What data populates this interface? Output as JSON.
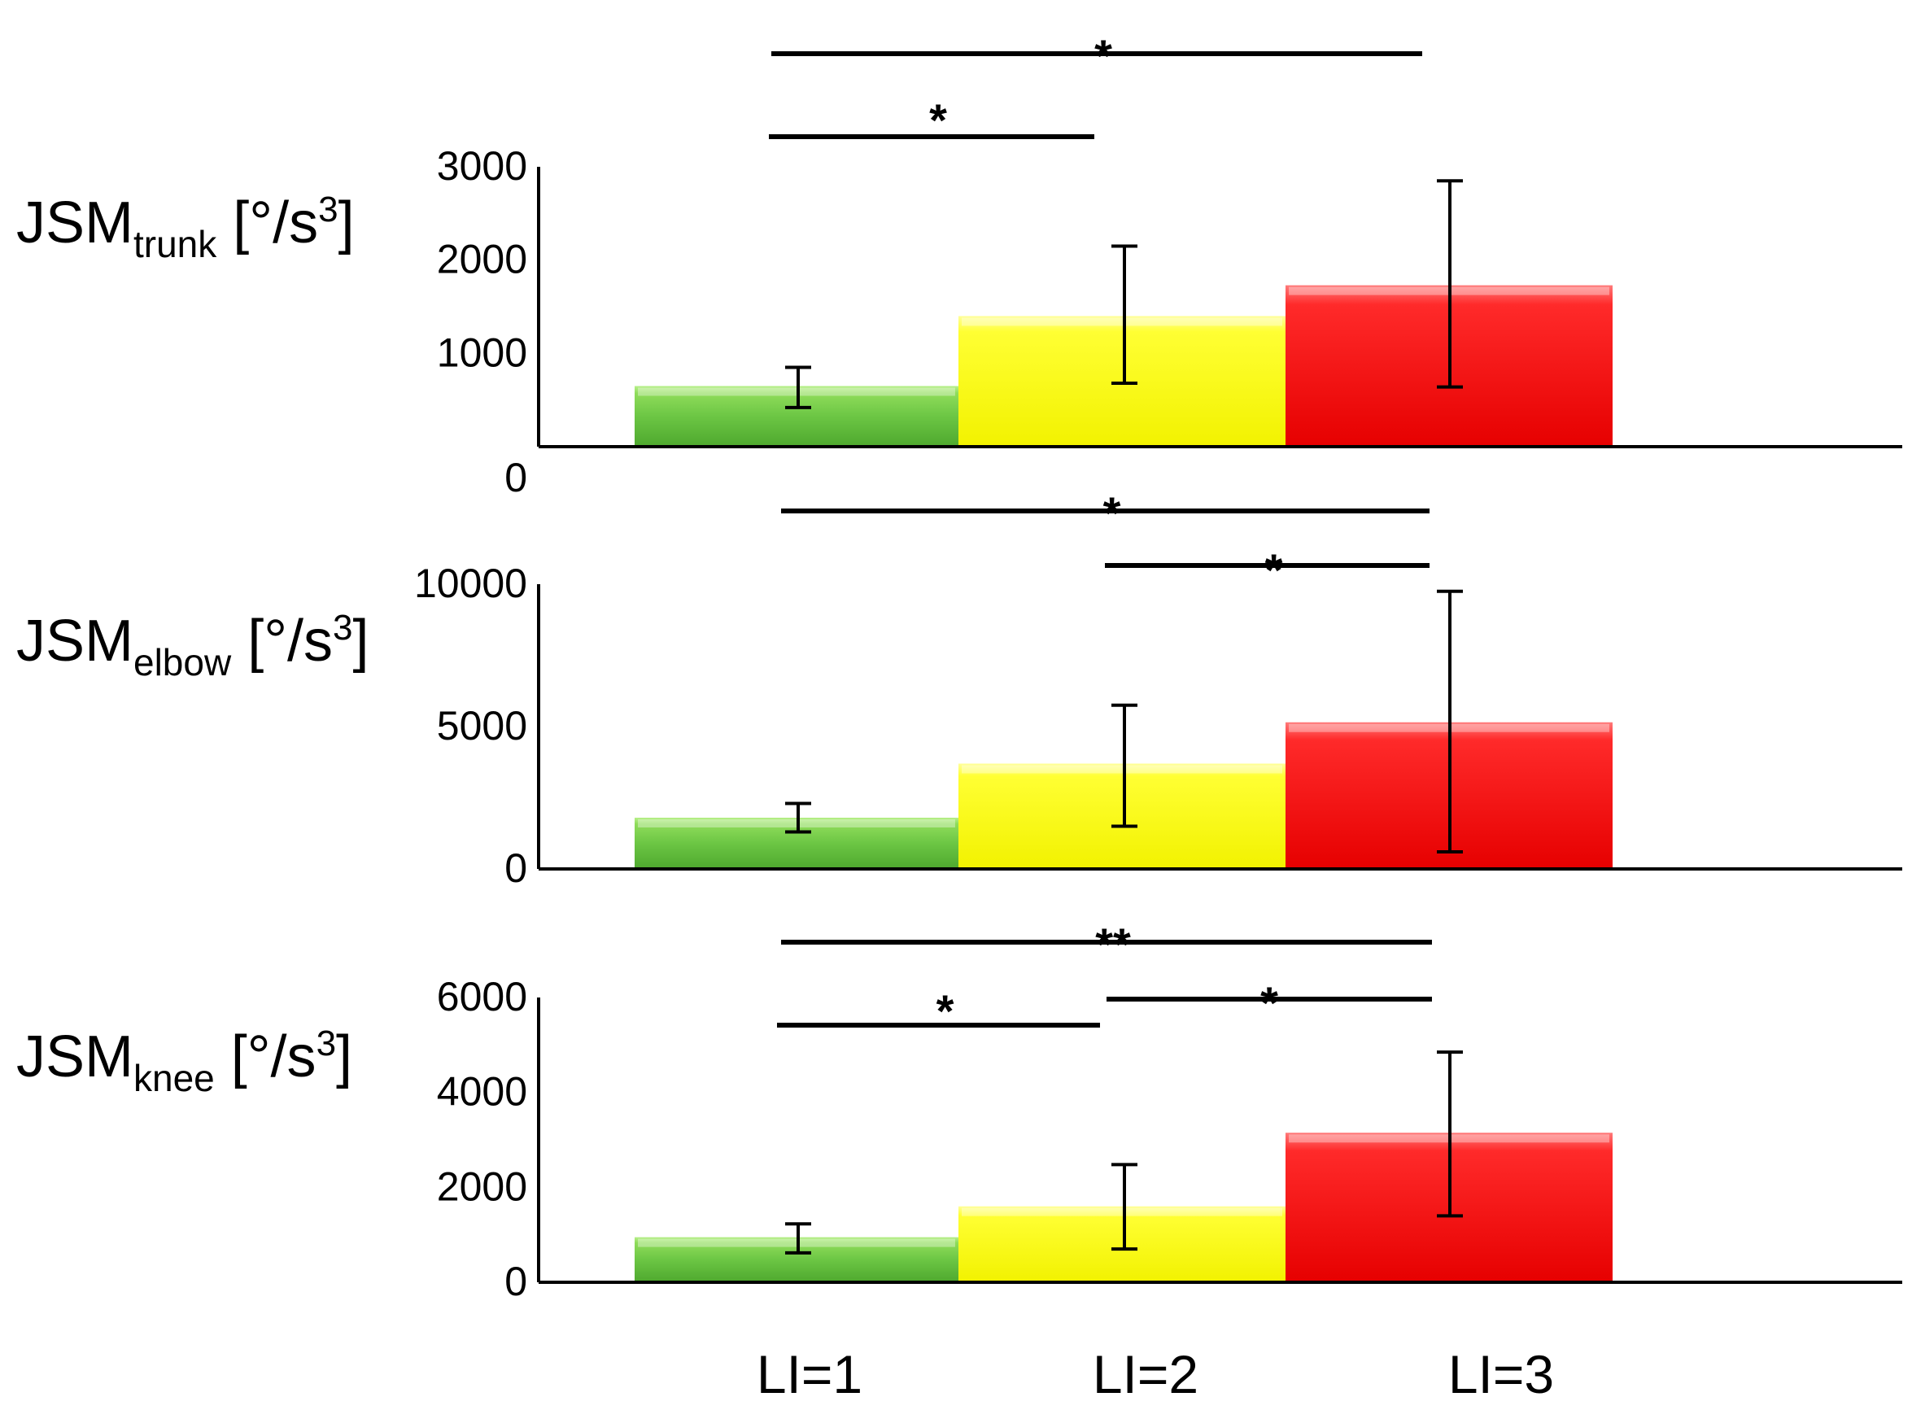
{
  "chart_data": [
    {
      "type": "bar",
      "name": "trunk",
      "ylabel_main": "JSM",
      "ylabel_sub": "trunk",
      "ylabel_unit_open": " [°/s",
      "ylabel_unit_sup": "3",
      "ylabel_unit_close": "]",
      "categories": [
        "LI=1",
        "LI=2",
        "LI=3"
      ],
      "values": [
        650,
        1400,
        1730
      ],
      "error_low": [
        420,
        680,
        640
      ],
      "error_high": [
        850,
        2150,
        2850
      ],
      "ylim": [
        0,
        3000
      ],
      "yticks": [
        "0",
        "1000",
        "2000",
        "3000"
      ],
      "significance": [
        {
          "from": 0,
          "to": 2,
          "label": "*"
        },
        {
          "from": 0,
          "to": 1,
          "label": "*"
        }
      ]
    },
    {
      "type": "bar",
      "name": "elbow",
      "ylabel_main": "JSM",
      "ylabel_sub": "elbow",
      "ylabel_unit_open": " [°/s",
      "ylabel_unit_sup": "3",
      "ylabel_unit_close": "]",
      "categories": [
        "LI=1",
        "LI=2",
        "LI=3"
      ],
      "values": [
        1800,
        3700,
        5150
      ],
      "error_low": [
        1300,
        1500,
        600
      ],
      "error_high": [
        2300,
        5750,
        9750
      ],
      "ylim": [
        0,
        10000
      ],
      "yticks": [
        "0",
        "5000",
        "10000"
      ],
      "significance": [
        {
          "from": 0,
          "to": 2,
          "label": "*"
        },
        {
          "from": 1,
          "to": 2,
          "label": "*"
        }
      ]
    },
    {
      "type": "bar",
      "name": "knee",
      "ylabel_main": "JSM",
      "ylabel_sub": "knee",
      "ylabel_unit_open": " [°/s",
      "ylabel_unit_sup": "3",
      "ylabel_unit_close": "]",
      "categories": [
        "LI=1",
        "LI=2",
        "LI=3"
      ],
      "values": [
        950,
        1600,
        3150
      ],
      "error_low": [
        620,
        700,
        1400
      ],
      "error_high": [
        1230,
        2480,
        4850
      ],
      "ylim": [
        0,
        6000
      ],
      "yticks": [
        "0",
        "2000",
        "4000",
        "6000"
      ],
      "significance": [
        {
          "from": 0,
          "to": 2,
          "label": "**"
        },
        {
          "from": 0,
          "to": 1,
          "label": "*"
        },
        {
          "from": 1,
          "to": 2,
          "label": "*"
        }
      ]
    }
  ],
  "x_labels": [
    "LI=1",
    "LI=2",
    "LI=3"
  ],
  "bar_colors": [
    "#6cc644",
    "#ffff00",
    "#ff0000"
  ]
}
